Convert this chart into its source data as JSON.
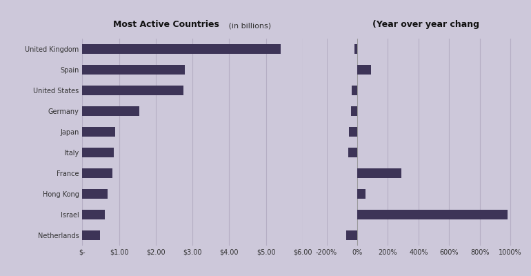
{
  "countries": [
    "United Kingdom",
    "Spain",
    "United States",
    "Germany",
    "Japan",
    "Italy",
    "France",
    "Hong Kong",
    "Israel",
    "Netherlands"
  ],
  "values_billions": [
    5.4,
    2.8,
    2.75,
    1.55,
    0.9,
    0.85,
    0.82,
    0.68,
    0.62,
    0.48
  ],
  "yoy_change": [
    -20,
    90,
    -35,
    -42,
    -52,
    -57,
    290,
    55,
    980,
    -70
  ],
  "bar_color": "#3d3457",
  "bg_color": "#cdc8da",
  "title_left": "Most Active Countries",
  "title_left_sub": " (in billions)",
  "title_right": "(Year over year chang",
  "xlim_left": [
    0,
    6.0
  ],
  "xlim_right": [
    -200,
    1100
  ],
  "xticks_left": [
    0,
    1,
    2,
    3,
    4,
    5,
    6
  ],
  "xtick_labels_left": [
    "$-",
    "$1.00",
    "$2.00",
    "$3.00",
    "$4.00",
    "$5.00",
    "$6.00"
  ],
  "xticks_right": [
    -200,
    0,
    200,
    400,
    600,
    800,
    1000
  ],
  "xtick_labels_right": [
    "-200%",
    "0%",
    "200%",
    "400%",
    "600%",
    "800%",
    "1000%"
  ]
}
